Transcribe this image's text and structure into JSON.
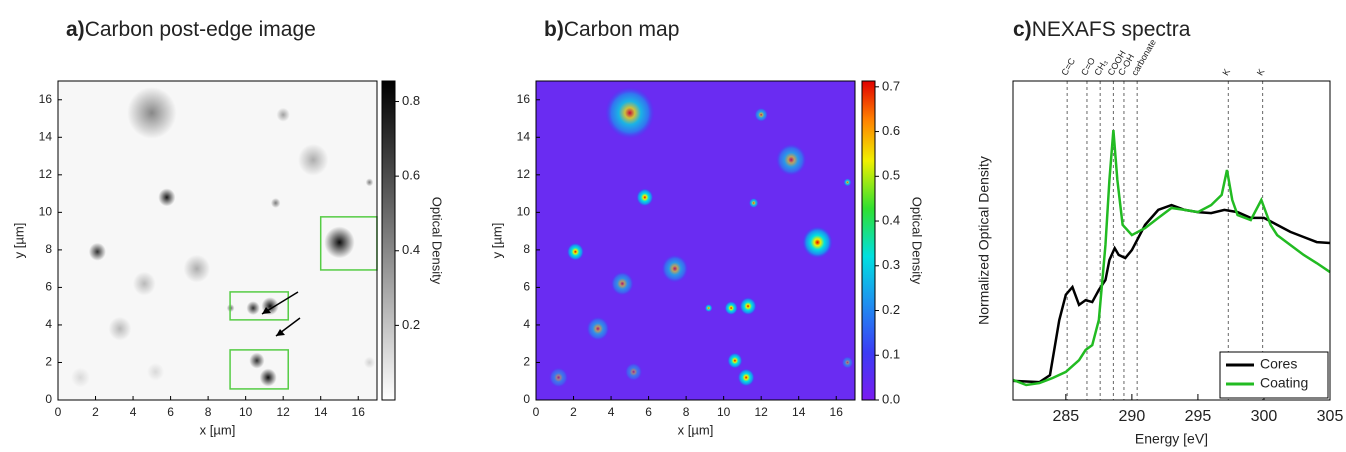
{
  "chart_data": [
    {
      "type": "image",
      "label": "a)",
      "title": "Carbon post-edge image",
      "xlabel": "x [µm]",
      "ylabel": "y [µm]",
      "xlim": [
        0,
        17
      ],
      "ylim": [
        0,
        17
      ],
      "xticks": [
        0,
        2,
        4,
        6,
        8,
        10,
        12,
        14,
        16
      ],
      "yticks": [
        0,
        2,
        4,
        6,
        8,
        10,
        12,
        14,
        16
      ],
      "colormap": "gray",
      "colorbar_label": "Optical Density",
      "clim": [
        0,
        0.855
      ],
      "cticks": [
        0.2,
        0.4,
        0.6,
        0.8
      ]
    },
    {
      "type": "image",
      "label": "b)",
      "title": "Carbon map",
      "xlabel": "x [µm]",
      "ylabel": "y [µm]",
      "xlim": [
        0,
        17
      ],
      "ylim": [
        0,
        17
      ],
      "xticks": [
        0,
        2,
        4,
        6,
        8,
        10,
        12,
        14,
        16
      ],
      "yticks": [
        0,
        2,
        4,
        6,
        8,
        10,
        12,
        14,
        16
      ],
      "colormap": "rainbow",
      "colorbar_label": "Optical Density",
      "clim": [
        0,
        0.713
      ],
      "cticks": [
        {
          "value": 0,
          "label": "0.0"
        },
        0.1,
        0.2,
        0.3,
        0.4,
        0.5,
        0.6,
        0.7
      ]
    },
    {
      "type": "line",
      "label": "c)",
      "title": "NEXAFS spectra",
      "xlabel": "Energy [eV]",
      "ylabel": "Normalized Optical Density",
      "xlim": [
        281,
        305
      ],
      "ylim": [
        0,
        1
      ],
      "xticks": [
        285,
        290,
        295,
        300,
        305
      ],
      "legend": "lower right",
      "annotations": [
        {
          "x": 285.1,
          "label": "C=C"
        },
        {
          "x": 286.6,
          "label": "C=O"
        },
        {
          "x": 287.6,
          "label": "CH₃"
        },
        {
          "x": 288.6,
          "label": "COOH"
        },
        {
          "x": 289.4,
          "label": "C-OH"
        },
        {
          "x": 290.4,
          "label": "carbonate"
        },
        {
          "x": 297.3,
          "label": "K"
        },
        {
          "x": 299.9,
          "label": "K"
        }
      ],
      "series": [
        {
          "name": "Cores",
          "color": "#000000",
          "x": [
            281,
            283,
            283.8,
            284.5,
            285,
            285.5,
            286,
            286.5,
            287,
            287.5,
            288,
            288.3,
            288.7,
            289,
            289.5,
            290,
            291,
            292,
            293,
            294,
            295,
            296,
            297,
            298,
            299,
            300,
            301,
            302,
            303,
            304,
            305
          ],
          "values": [
            0.06,
            0.056,
            0.078,
            0.25,
            0.33,
            0.354,
            0.298,
            0.313,
            0.307,
            0.345,
            0.376,
            0.439,
            0.476,
            0.455,
            0.445,
            0.47,
            0.549,
            0.596,
            0.611,
            0.596,
            0.589,
            0.586,
            0.596,
            0.589,
            0.571,
            0.571,
            0.549,
            0.527,
            0.511,
            0.495,
            0.492
          ]
        },
        {
          "name": "Coating",
          "color": "#22bb22",
          "x": [
            281,
            282,
            283,
            284,
            285,
            286,
            286.5,
            287,
            287.5,
            288,
            288.3,
            288.6,
            288.9,
            289.3,
            290,
            291,
            292,
            293,
            294,
            295,
            296,
            296.8,
            297.2,
            297.6,
            298,
            299,
            299.8,
            300.5,
            301,
            302,
            303,
            304,
            305
          ],
          "values": [
            0.063,
            0.047,
            0.053,
            0.069,
            0.088,
            0.125,
            0.157,
            0.172,
            0.251,
            0.486,
            0.69,
            0.846,
            0.69,
            0.549,
            0.517,
            0.539,
            0.571,
            0.602,
            0.596,
            0.589,
            0.611,
            0.643,
            0.721,
            0.627,
            0.58,
            0.564,
            0.627,
            0.549,
            0.517,
            0.486,
            0.455,
            0.429,
            0.401
          ]
        }
      ]
    }
  ]
}
